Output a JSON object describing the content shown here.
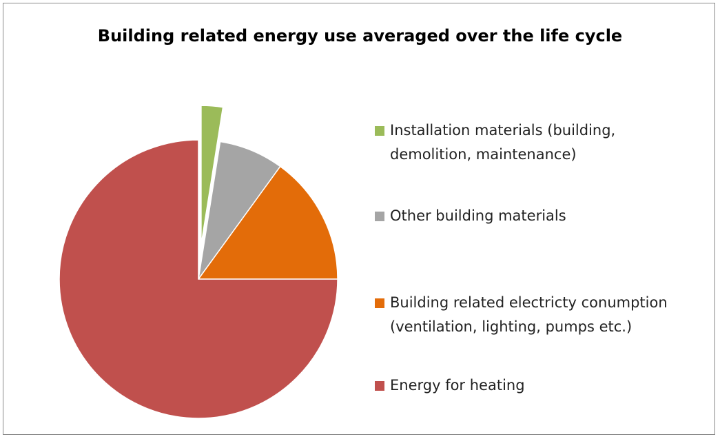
{
  "chart_data": {
    "type": "pie",
    "title": "Building related energy use averaged over the life cycle",
    "categories": [
      "Installation materials (building, demolition, maintenance)",
      "Other building materials",
      "Building related electricty conumption (ventilation, lighting, pumps etc.)",
      "Energy for heating"
    ],
    "values": [
      2.5,
      7.5,
      15,
      75
    ],
    "colors": [
      "#9bbb59",
      "#a5a5a5",
      "#e36c09",
      "#c0504d"
    ],
    "exploded": [
      0
    ],
    "legend": "right"
  }
}
